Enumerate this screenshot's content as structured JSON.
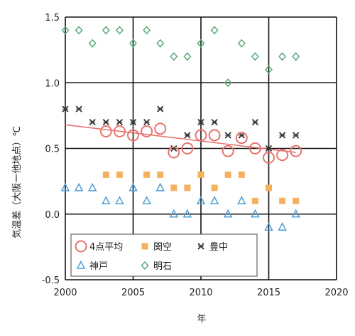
{
  "chart_data": {
    "type": "scatter",
    "title": "",
    "xlabel": "年",
    "ylabel": "気温差（大阪ー他地点）℃",
    "xlim": [
      2000,
      2020
    ],
    "ylim": [
      -0.5,
      1.5
    ],
    "xticks": [
      2000,
      2005,
      2010,
      2015,
      2020
    ],
    "yticks": [
      -0.5,
      0.0,
      0.5,
      1.0,
      1.5
    ],
    "xtick_labels": [
      "2000",
      "2005",
      "2010",
      "2015",
      "2020"
    ],
    "ytick_labels": [
      "-0.5",
      "0.0",
      "0.5",
      "1.0",
      "1.5"
    ],
    "grid": true,
    "legend_position": "bottom-left",
    "series": [
      {
        "name": "4点平均",
        "marker": "circle",
        "color": "#e8746e",
        "x": [
          2003,
          2004,
          2005,
          2006,
          2007,
          2008,
          2009,
          2010,
          2011,
          2012,
          2013,
          2014,
          2015,
          2016,
          2017
        ],
        "y": [
          0.63,
          0.63,
          0.6,
          0.63,
          0.65,
          0.47,
          0.5,
          0.6,
          0.6,
          0.48,
          0.58,
          0.5,
          0.43,
          0.45,
          0.48
        ]
      },
      {
        "name": "関空",
        "marker": "square",
        "color": "#f5b060",
        "x": [
          2003,
          2004,
          2006,
          2007,
          2008,
          2009,
          2010,
          2011,
          2012,
          2013,
          2014,
          2015,
          2016,
          2017
        ],
        "y": [
          0.3,
          0.3,
          0.3,
          0.3,
          0.2,
          0.2,
          0.3,
          0.2,
          0.3,
          0.3,
          0.1,
          0.2,
          0.1,
          0.1
        ]
      },
      {
        "name": "豊中",
        "marker": "x",
        "color": "#333333",
        "x": [
          2000,
          2001,
          2002,
          2003,
          2004,
          2005,
          2006,
          2007,
          2008,
          2009,
          2010,
          2011,
          2012,
          2013,
          2014,
          2015,
          2016,
          2017
        ],
        "y": [
          0.8,
          0.8,
          0.7,
          0.7,
          0.7,
          0.7,
          0.7,
          0.8,
          0.5,
          0.6,
          0.7,
          0.7,
          0.6,
          0.6,
          0.7,
          0.5,
          0.6,
          0.6
        ]
      },
      {
        "name": "神戸",
        "marker": "triangle",
        "color": "#4d9fd6",
        "x": [
          2000,
          2001,
          2002,
          2003,
          2004,
          2005,
          2006,
          2007,
          2008,
          2009,
          2010,
          2011,
          2012,
          2013,
          2014,
          2015,
          2016,
          2017
        ],
        "y": [
          0.2,
          0.2,
          0.2,
          0.1,
          0.1,
          0.2,
          0.1,
          0.2,
          0.0,
          0.0,
          0.1,
          0.1,
          0.0,
          0.1,
          0.0,
          -0.1,
          -0.1,
          0.0
        ]
      },
      {
        "name": "明石",
        "marker": "diamond",
        "color": "#5aab7a",
        "x": [
          2000,
          2001,
          2002,
          2003,
          2004,
          2005,
          2006,
          2007,
          2008,
          2009,
          2010,
          2011,
          2012,
          2013,
          2014,
          2015,
          2016,
          2017
        ],
        "y": [
          1.4,
          1.4,
          1.3,
          1.4,
          1.4,
          1.3,
          1.4,
          1.3,
          1.2,
          1.2,
          1.3,
          1.4,
          1.0,
          1.3,
          1.2,
          1.1,
          1.2,
          1.2
        ]
      }
    ],
    "trendline": {
      "series": "4点平均",
      "color": "#e8746e",
      "x": [
        2000,
        2017
      ],
      "y": [
        0.68,
        0.47
      ]
    }
  }
}
